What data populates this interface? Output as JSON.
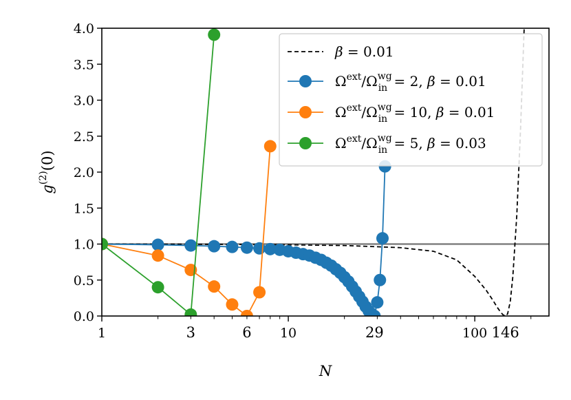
{
  "chart_data": {
    "type": "line",
    "xscale": "log",
    "xlim": [
      1,
      250
    ],
    "ylim": [
      0.0,
      4.0
    ],
    "xlabel": "N",
    "ylabel": "g(2)(0)",
    "yticks": [
      "0.0",
      "0.5",
      "1.0",
      "1.5",
      "2.0",
      "2.5",
      "3.0",
      "3.5",
      "4.0"
    ],
    "xticks_major": [
      {
        "value": 1,
        "label": "1",
        "color": "#000000"
      },
      {
        "value": 10,
        "label": "10",
        "color": "#000000"
      },
      {
        "value": 100,
        "label": "100",
        "color": "#000000"
      }
    ],
    "xticks_highlight": [
      {
        "value": 3,
        "label": "3",
        "color": "#ff0000"
      },
      {
        "value": 6,
        "label": "6",
        "color": "#ff0000"
      },
      {
        "value": 29,
        "label": "29",
        "color": "#ff0000"
      },
      {
        "value": 146,
        "label": "146",
        "color": "#ff0000"
      }
    ],
    "reference_line": {
      "y": 1.0,
      "color": "#808080"
    },
    "series": [
      {
        "name": "β = 0.01",
        "style": "dashed",
        "color": "#000000",
        "markers": false,
        "x": [
          1,
          5,
          10,
          20,
          40,
          60,
          80,
          100,
          115,
          125,
          132,
          138,
          142,
          146,
          150,
          155,
          160,
          168,
          176,
          184
        ],
        "y": [
          1.0,
          0.995,
          0.99,
          0.98,
          0.95,
          0.9,
          0.78,
          0.55,
          0.36,
          0.22,
          0.12,
          0.05,
          0.015,
          0.0,
          0.03,
          0.2,
          0.55,
          1.4,
          2.6,
          4.0
        ]
      },
      {
        "name": "Ωext/Ωinwg = 2, β = 0.01",
        "style": "solid",
        "color": "#1f77b4",
        "markers": true,
        "x": [
          1,
          2,
          3,
          4,
          5,
          6,
          7,
          8,
          9,
          10,
          11,
          12,
          13,
          14,
          15,
          16,
          17,
          18,
          19,
          20,
          21,
          22,
          23,
          24,
          25,
          26,
          27,
          28,
          29,
          30,
          31,
          32,
          33
        ],
        "y": [
          1.0,
          0.99,
          0.98,
          0.97,
          0.96,
          0.95,
          0.94,
          0.93,
          0.92,
          0.9,
          0.88,
          0.86,
          0.84,
          0.81,
          0.78,
          0.74,
          0.7,
          0.65,
          0.6,
          0.54,
          0.48,
          0.41,
          0.34,
          0.27,
          0.2,
          0.13,
          0.07,
          0.03,
          0.0,
          0.19,
          0.5,
          1.08,
          2.08
        ]
      },
      {
        "name": "Ωext/Ωinwg = 10, β = 0.01",
        "style": "solid",
        "color": "#ff7f0e",
        "markers": true,
        "x": [
          1,
          2,
          3,
          4,
          5,
          6,
          7,
          8
        ],
        "y": [
          1.0,
          0.84,
          0.64,
          0.41,
          0.16,
          0.0,
          0.33,
          2.36
        ]
      },
      {
        "name": "Ωext/Ωinwg = 5, β = 0.03",
        "style": "solid",
        "color": "#2ca02c",
        "markers": true,
        "x": [
          1,
          2,
          3,
          4
        ],
        "y": [
          1.0,
          0.4,
          0.02,
          3.91
        ]
      }
    ],
    "legend": {
      "placement": "top-right",
      "entries": [
        {
          "main": "β = 0.01",
          "sup": "",
          "sub": "",
          "tail": ""
        },
        {
          "main": "Ω",
          "sup": "ext",
          "mid": "/Ω",
          "sup2": "wg",
          "sub": "in",
          "tail": " = 2, β = 0.01"
        },
        {
          "main": "Ω",
          "sup": "ext",
          "mid": "/Ω",
          "sup2": "wg",
          "sub": "in",
          "tail": " = 10, β = 0.01"
        },
        {
          "main": "Ω",
          "sup": "ext",
          "mid": "/Ω",
          "sup2": "wg",
          "sub": "in",
          "tail": " = 5, β = 0.03"
        }
      ]
    }
  }
}
